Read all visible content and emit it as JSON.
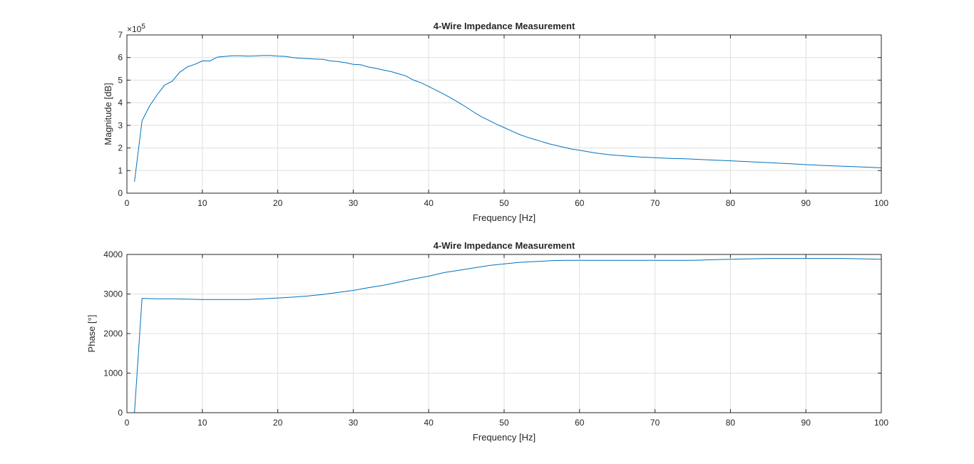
{
  "chart_data": [
    {
      "type": "line",
      "title": "4-Wire Impedance Measurement",
      "xlabel": "Frequency [Hz]",
      "ylabel": "Magnitude [dB]",
      "exponent_base": "×10",
      "exponent_power": "5",
      "xlim": [
        0,
        100
      ],
      "ylim": [
        0,
        7
      ],
      "xticks": [
        0,
        10,
        20,
        30,
        40,
        50,
        60,
        70,
        80,
        90,
        100
      ],
      "yticks": [
        0,
        1,
        2,
        3,
        4,
        5,
        6,
        7
      ],
      "grid": true,
      "color": "#0072bd",
      "series": [
        {
          "x": [
            1,
            2,
            3,
            4,
            5,
            6,
            7,
            8,
            9,
            10,
            11,
            12,
            13,
            14,
            15,
            16,
            17,
            18,
            19,
            20,
            21,
            22,
            23,
            24,
            25,
            26,
            27,
            28,
            29,
            30,
            31,
            32,
            33,
            34,
            35,
            36,
            37,
            38,
            39,
            40,
            41,
            42,
            43,
            44,
            45,
            46,
            47,
            48,
            49,
            50,
            51,
            52,
            53,
            54,
            55,
            56,
            57,
            58,
            59,
            60,
            62,
            64,
            66,
            68,
            70,
            72,
            74,
            76,
            78,
            80,
            82,
            84,
            86,
            88,
            90,
            92,
            94,
            96,
            98,
            100
          ],
          "y": [
            0.5,
            3.2,
            3.85,
            4.35,
            4.78,
            4.95,
            5.35,
            5.58,
            5.7,
            5.85,
            5.85,
            6.02,
            6.05,
            6.08,
            6.08,
            6.06,
            6.07,
            6.09,
            6.09,
            6.06,
            6.05,
            6.0,
            5.97,
            5.95,
            5.93,
            5.92,
            5.85,
            5.82,
            5.77,
            5.7,
            5.68,
            5.58,
            5.52,
            5.45,
            5.38,
            5.28,
            5.18,
            5.0,
            4.88,
            4.72,
            4.55,
            4.38,
            4.2,
            4.0,
            3.8,
            3.58,
            3.38,
            3.22,
            3.05,
            2.9,
            2.75,
            2.6,
            2.48,
            2.38,
            2.28,
            2.18,
            2.1,
            2.02,
            1.95,
            1.9,
            1.78,
            1.7,
            1.65,
            1.6,
            1.57,
            1.54,
            1.52,
            1.49,
            1.46,
            1.43,
            1.4,
            1.37,
            1.33,
            1.3,
            1.26,
            1.23,
            1.2,
            1.18,
            1.15,
            1.12
          ]
        }
      ]
    },
    {
      "type": "line",
      "title": "4-Wire Impedance Measurement",
      "xlabel": "Frequency [Hz]",
      "ylabel": "Phase [°]",
      "xlim": [
        0,
        100
      ],
      "ylim": [
        0,
        4000
      ],
      "xticks": [
        0,
        10,
        20,
        30,
        40,
        50,
        60,
        70,
        80,
        90,
        100
      ],
      "yticks": [
        0,
        1000,
        2000,
        3000,
        4000
      ],
      "grid": true,
      "color": "#0072bd",
      "series": [
        {
          "x": [
            1,
            2,
            4,
            6,
            8,
            10,
            12,
            14,
            16,
            18,
            20,
            22,
            24,
            26,
            28,
            30,
            32,
            34,
            36,
            38,
            40,
            42,
            44,
            46,
            48,
            50,
            52,
            54,
            56,
            58,
            60,
            65,
            70,
            75,
            80,
            85,
            90,
            95,
            100
          ],
          "y": [
            0,
            2890,
            2880,
            2880,
            2870,
            2860,
            2860,
            2860,
            2860,
            2880,
            2900,
            2920,
            2950,
            2990,
            3040,
            3090,
            3160,
            3220,
            3300,
            3380,
            3450,
            3540,
            3600,
            3660,
            3720,
            3760,
            3800,
            3820,
            3840,
            3850,
            3850,
            3850,
            3850,
            3850,
            3880,
            3900,
            3900,
            3900,
            3880
          ]
        }
      ]
    }
  ]
}
